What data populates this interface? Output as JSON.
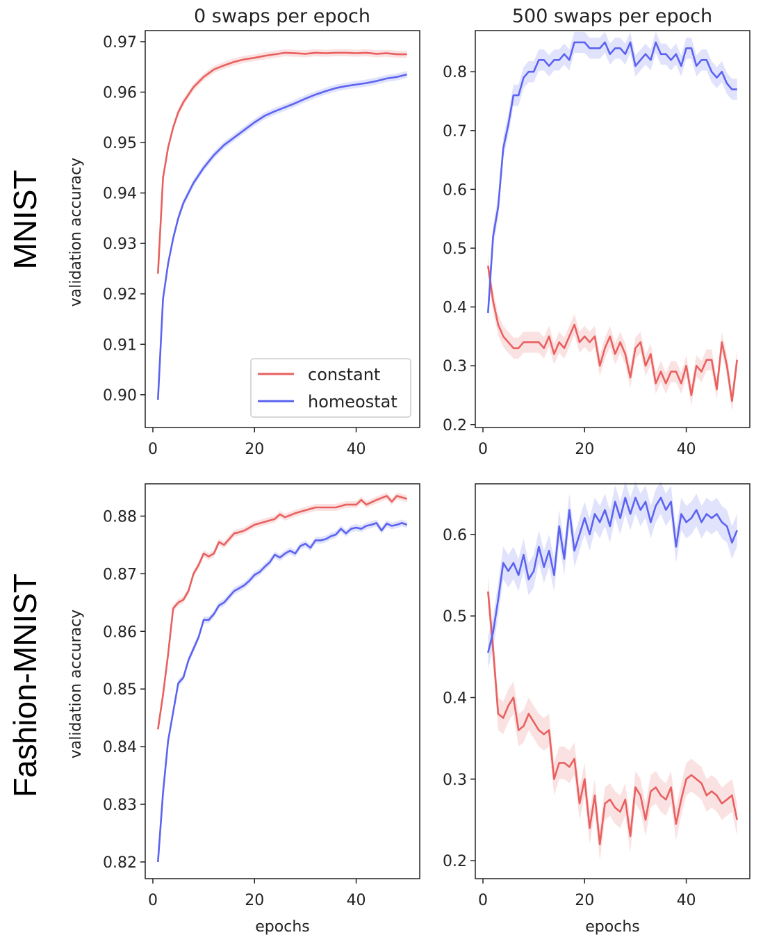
{
  "figure": {
    "row_labels": [
      "MNIST",
      "Fashion-MNIST"
    ],
    "col_titles": [
      "0 swaps per epoch",
      "500 swaps per epoch"
    ],
    "colors": {
      "constant": "#e8605f",
      "homeostat": "#5b63f0"
    }
  },
  "chart_data": [
    {
      "type": "line",
      "title": "0 swaps per epoch",
      "row": "MNIST",
      "xlabel": "",
      "ylabel": "validation accuracy",
      "xlim": [
        -1.5,
        52.5
      ],
      "ylim": [
        0.8935,
        0.9722
      ],
      "xticks": [
        0,
        20,
        40
      ],
      "yticks": [
        0.9,
        0.91,
        0.92,
        0.93,
        0.94,
        0.95,
        0.96,
        0.97
      ],
      "ytick_decimals": 2,
      "legend": {
        "position": "lower right",
        "entries": [
          "constant",
          "homeostat"
        ]
      },
      "band": 0.0007,
      "series": [
        {
          "name": "constant",
          "x": [
            1,
            2,
            3,
            4,
            5,
            6,
            8,
            10,
            12,
            14,
            16,
            18,
            20,
            22,
            24,
            26,
            28,
            30,
            32,
            34,
            36,
            38,
            40,
            42,
            44,
            46,
            48,
            50
          ],
          "values": [
            0.924,
            0.943,
            0.949,
            0.953,
            0.956,
            0.958,
            0.961,
            0.963,
            0.9645,
            0.9653,
            0.966,
            0.9665,
            0.9668,
            0.9672,
            0.9675,
            0.9678,
            0.9677,
            0.9676,
            0.9678,
            0.9677,
            0.9678,
            0.9678,
            0.9677,
            0.9678,
            0.9676,
            0.9677,
            0.9675,
            0.9675
          ]
        },
        {
          "name": "homeostat",
          "x": [
            1,
            2,
            3,
            4,
            5,
            6,
            8,
            10,
            12,
            14,
            16,
            18,
            20,
            22,
            24,
            26,
            28,
            30,
            32,
            34,
            36,
            38,
            40,
            42,
            44,
            46,
            48,
            50
          ],
          "values": [
            0.899,
            0.919,
            0.926,
            0.931,
            0.935,
            0.938,
            0.942,
            0.945,
            0.9475,
            0.9495,
            0.951,
            0.9525,
            0.954,
            0.9553,
            0.9562,
            0.957,
            0.9578,
            0.9587,
            0.9595,
            0.9602,
            0.9608,
            0.9612,
            0.9615,
            0.9618,
            0.9622,
            0.9627,
            0.963,
            0.9635
          ]
        }
      ]
    },
    {
      "type": "line",
      "title": "500 swaps per epoch",
      "row": "MNIST",
      "xlabel": "",
      "ylabel": "",
      "xlim": [
        -1.5,
        52.5
      ],
      "ylim": [
        0.195,
        0.87
      ],
      "xticks": [
        0,
        20,
        40
      ],
      "yticks": [
        0.2,
        0.3,
        0.4,
        0.5,
        0.6,
        0.7,
        0.8
      ],
      "ytick_decimals": 1,
      "band": 0.018,
      "series": [
        {
          "name": "constant",
          "x": [
            1,
            2,
            3,
            4,
            5,
            6,
            7,
            8,
            9,
            10,
            11,
            12,
            13,
            14,
            15,
            16,
            17,
            18,
            19,
            20,
            21,
            22,
            23,
            24,
            25,
            26,
            27,
            28,
            29,
            30,
            31,
            32,
            33,
            34,
            35,
            36,
            37,
            38,
            39,
            40,
            41,
            42,
            43,
            44,
            45,
            46,
            47,
            48,
            49,
            50
          ],
          "values": [
            0.47,
            0.41,
            0.37,
            0.35,
            0.34,
            0.33,
            0.33,
            0.34,
            0.34,
            0.34,
            0.34,
            0.33,
            0.35,
            0.32,
            0.34,
            0.33,
            0.35,
            0.37,
            0.34,
            0.35,
            0.34,
            0.35,
            0.3,
            0.33,
            0.35,
            0.32,
            0.34,
            0.32,
            0.28,
            0.33,
            0.34,
            0.3,
            0.32,
            0.27,
            0.29,
            0.27,
            0.29,
            0.29,
            0.27,
            0.3,
            0.25,
            0.3,
            0.29,
            0.31,
            0.31,
            0.26,
            0.34,
            0.3,
            0.24,
            0.31
          ]
        },
        {
          "name": "homeostat",
          "x": [
            1,
            2,
            3,
            4,
            5,
            6,
            7,
            8,
            9,
            10,
            11,
            12,
            13,
            14,
            15,
            16,
            17,
            18,
            19,
            20,
            21,
            22,
            23,
            24,
            25,
            26,
            27,
            28,
            29,
            30,
            31,
            32,
            33,
            34,
            35,
            36,
            37,
            38,
            39,
            40,
            41,
            42,
            43,
            44,
            45,
            46,
            47,
            48,
            49,
            50
          ],
          "values": [
            0.39,
            0.52,
            0.57,
            0.67,
            0.71,
            0.76,
            0.76,
            0.79,
            0.8,
            0.8,
            0.82,
            0.82,
            0.81,
            0.82,
            0.82,
            0.83,
            0.82,
            0.85,
            0.85,
            0.85,
            0.84,
            0.84,
            0.84,
            0.85,
            0.83,
            0.84,
            0.84,
            0.83,
            0.85,
            0.81,
            0.82,
            0.83,
            0.82,
            0.85,
            0.83,
            0.83,
            0.82,
            0.83,
            0.81,
            0.84,
            0.84,
            0.81,
            0.82,
            0.82,
            0.8,
            0.79,
            0.8,
            0.78,
            0.77,
            0.77
          ]
        }
      ]
    },
    {
      "type": "line",
      "title": "",
      "row": "Fashion-MNIST",
      "xlabel": "epochs",
      "ylabel": "validation accuracy",
      "xlim": [
        -1.5,
        52.5
      ],
      "ylim": [
        0.8171,
        0.8856
      ],
      "xticks": [
        0,
        20,
        40
      ],
      "yticks": [
        0.82,
        0.83,
        0.84,
        0.85,
        0.86,
        0.87,
        0.88
      ],
      "ytick_decimals": 2,
      "band": 0.0006,
      "series": [
        {
          "name": "constant",
          "x": [
            1,
            2,
            3,
            4,
            5,
            6,
            7,
            8,
            9,
            10,
            11,
            12,
            13,
            14,
            15,
            16,
            17,
            18,
            20,
            22,
            24,
            25,
            26,
            28,
            30,
            32,
            34,
            36,
            38,
            40,
            41,
            42,
            44,
            46,
            47,
            48,
            50
          ],
          "values": [
            0.843,
            0.849,
            0.856,
            0.864,
            0.865,
            0.8655,
            0.867,
            0.87,
            0.8715,
            0.8735,
            0.873,
            0.8735,
            0.8755,
            0.875,
            0.876,
            0.877,
            0.8772,
            0.8775,
            0.8785,
            0.879,
            0.8795,
            0.8803,
            0.8798,
            0.8805,
            0.881,
            0.8815,
            0.8815,
            0.8815,
            0.882,
            0.882,
            0.8828,
            0.882,
            0.8828,
            0.8835,
            0.8825,
            0.8835,
            0.883
          ]
        },
        {
          "name": "homeostat",
          "x": [
            1,
            2,
            3,
            4,
            5,
            6,
            7,
            8,
            9,
            10,
            11,
            12,
            13,
            14,
            15,
            16,
            17,
            18,
            19,
            20,
            21,
            22,
            23,
            24,
            25,
            26,
            27,
            28,
            29,
            30,
            31,
            32,
            33,
            34,
            35,
            36,
            37,
            38,
            39,
            40,
            41,
            42,
            43,
            44,
            45,
            46,
            47,
            48,
            49,
            50
          ],
          "values": [
            0.82,
            0.832,
            0.841,
            0.846,
            0.851,
            0.852,
            0.855,
            0.857,
            0.859,
            0.862,
            0.862,
            0.863,
            0.8645,
            0.865,
            0.866,
            0.867,
            0.8675,
            0.868,
            0.8688,
            0.8698,
            0.8703,
            0.8712,
            0.872,
            0.8733,
            0.8728,
            0.8735,
            0.874,
            0.8735,
            0.8748,
            0.8752,
            0.8745,
            0.8758,
            0.8758,
            0.876,
            0.8765,
            0.8768,
            0.8778,
            0.877,
            0.8778,
            0.878,
            0.8778,
            0.8783,
            0.8785,
            0.8788,
            0.8775,
            0.8787,
            0.8783,
            0.8785,
            0.8788,
            0.8785
          ]
        }
      ]
    },
    {
      "type": "line",
      "title": "",
      "row": "Fashion-MNIST",
      "xlabel": "epochs",
      "ylabel": "",
      "xlim": [
        -1.5,
        52.5
      ],
      "ylim": [
        0.178,
        0.662
      ],
      "xticks": [
        0,
        20,
        40
      ],
      "yticks": [
        0.2,
        0.3,
        0.4,
        0.5,
        0.6
      ],
      "ytick_decimals": 1,
      "band": 0.02,
      "series": [
        {
          "name": "constant",
          "x": [
            1,
            2,
            3,
            4,
            5,
            6,
            7,
            8,
            9,
            10,
            11,
            12,
            13,
            14,
            15,
            16,
            17,
            18,
            19,
            20,
            21,
            22,
            23,
            24,
            25,
            26,
            27,
            28,
            29,
            30,
            31,
            32,
            33,
            34,
            35,
            36,
            37,
            38,
            39,
            40,
            41,
            42,
            43,
            44,
            45,
            46,
            47,
            48,
            49,
            50
          ],
          "values": [
            0.53,
            0.46,
            0.38,
            0.375,
            0.39,
            0.4,
            0.36,
            0.365,
            0.38,
            0.37,
            0.36,
            0.355,
            0.36,
            0.3,
            0.32,
            0.32,
            0.315,
            0.325,
            0.27,
            0.3,
            0.24,
            0.28,
            0.22,
            0.27,
            0.275,
            0.265,
            0.26,
            0.275,
            0.23,
            0.29,
            0.28,
            0.25,
            0.285,
            0.29,
            0.28,
            0.275,
            0.29,
            0.245,
            0.275,
            0.3,
            0.305,
            0.3,
            0.295,
            0.28,
            0.285,
            0.28,
            0.27,
            0.275,
            0.28,
            0.25
          ]
        },
        {
          "name": "homeostat",
          "x": [
            1,
            2,
            3,
            4,
            5,
            6,
            7,
            8,
            9,
            10,
            11,
            12,
            13,
            14,
            15,
            16,
            17,
            18,
            19,
            20,
            21,
            22,
            23,
            24,
            25,
            26,
            27,
            28,
            29,
            30,
            31,
            32,
            33,
            34,
            35,
            36,
            37,
            38,
            39,
            40,
            41,
            42,
            43,
            44,
            45,
            46,
            47,
            48,
            49,
            50
          ],
          "values": [
            0.455,
            0.48,
            0.52,
            0.565,
            0.555,
            0.565,
            0.55,
            0.575,
            0.545,
            0.555,
            0.585,
            0.56,
            0.58,
            0.55,
            0.61,
            0.57,
            0.63,
            0.58,
            0.6,
            0.62,
            0.6,
            0.625,
            0.615,
            0.63,
            0.61,
            0.64,
            0.62,
            0.645,
            0.625,
            0.645,
            0.63,
            0.64,
            0.615,
            0.635,
            0.645,
            0.63,
            0.64,
            0.585,
            0.625,
            0.615,
            0.62,
            0.63,
            0.615,
            0.625,
            0.62,
            0.625,
            0.615,
            0.61,
            0.59,
            0.605
          ]
        }
      ]
    }
  ]
}
